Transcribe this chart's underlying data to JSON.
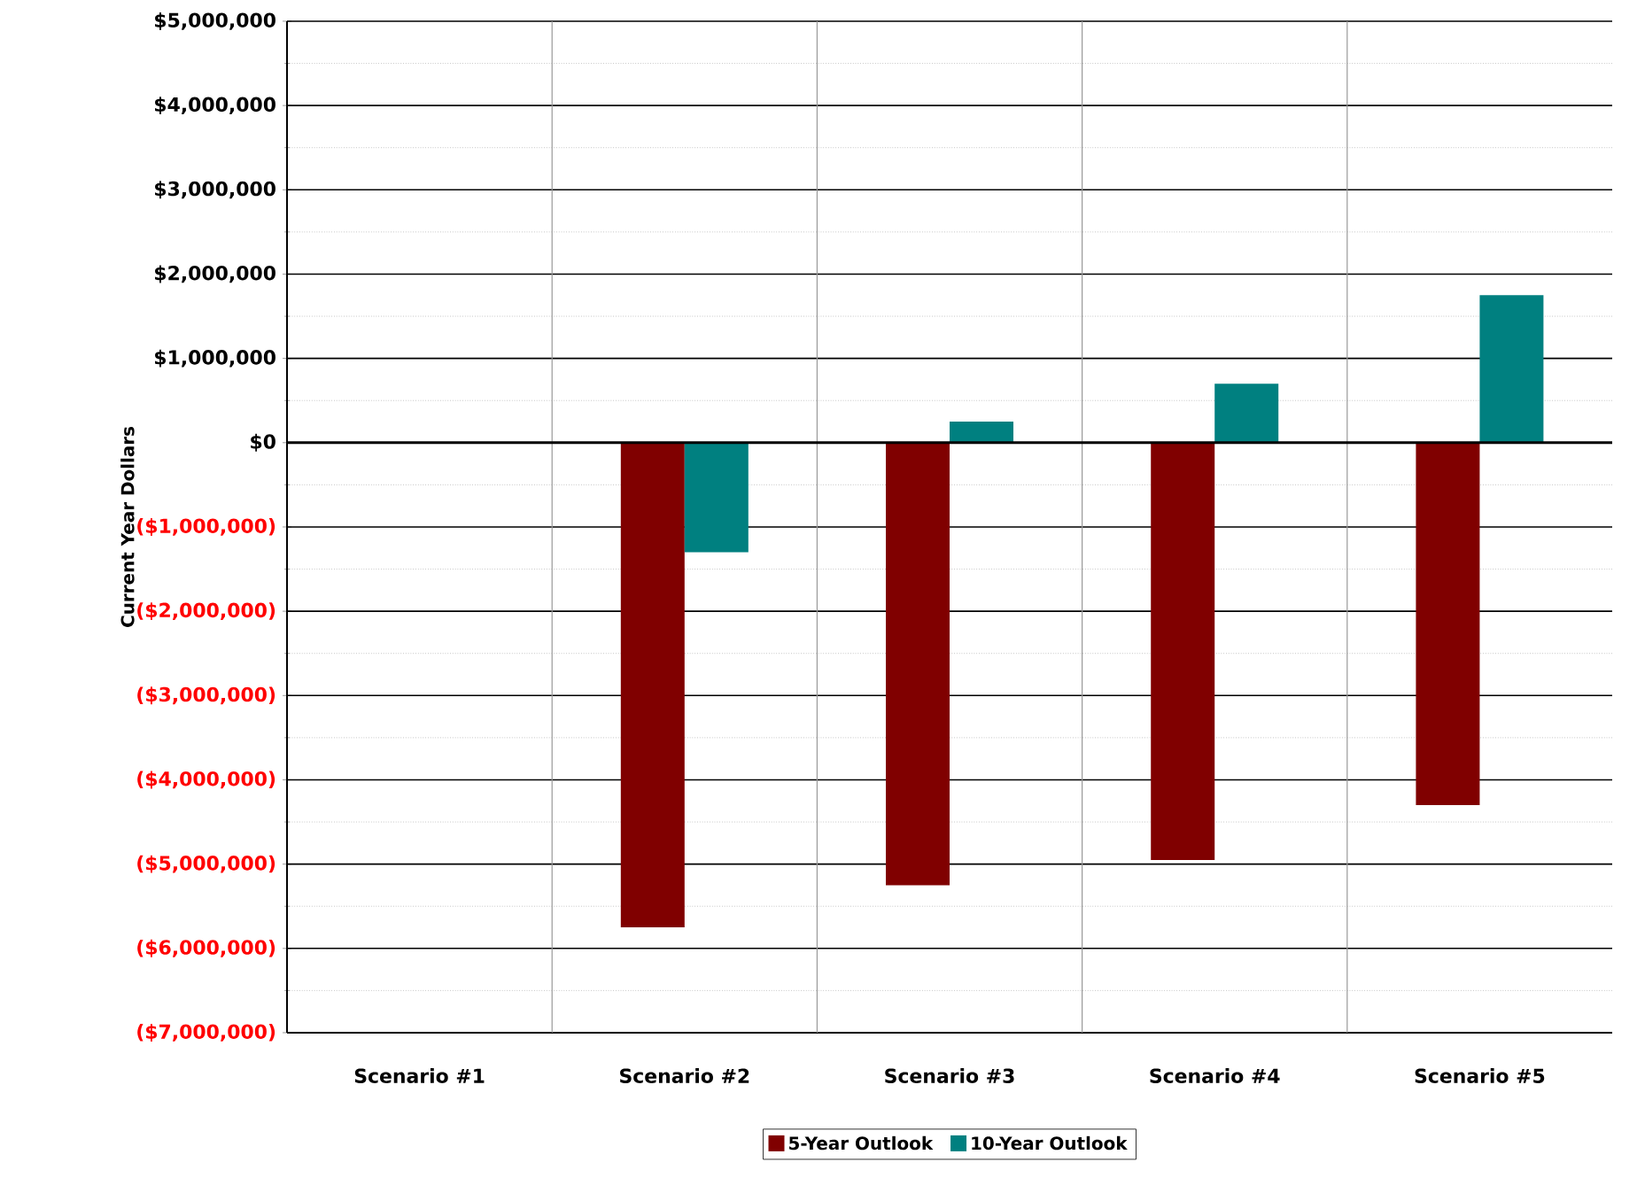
{
  "chart_data": {
    "type": "bar",
    "ylabel": "Current Year Dollars",
    "categories": [
      "Scenario #1",
      "Scenario #2",
      "Scenario #3",
      "Scenario #4",
      "Scenario #5"
    ],
    "series": [
      {
        "name": "5-Year Outlook",
        "color": "#800000",
        "values": [
          null,
          -5750000,
          -5250000,
          -4950000,
          -4300000
        ]
      },
      {
        "name": "10-Year Outlook",
        "color": "#008080",
        "values": [
          null,
          -1300000,
          250000,
          700000,
          1750000
        ]
      }
    ],
    "ylim": [
      -7000000,
      5000000
    ],
    "yticks": [
      {
        "value": -7000000,
        "label": "($7,000,000)"
      },
      {
        "value": -6000000,
        "label": "($6,000,000)"
      },
      {
        "value": -5000000,
        "label": "($5,000,000)"
      },
      {
        "value": -4000000,
        "label": "($4,000,000)"
      },
      {
        "value": -3000000,
        "label": "($3,000,000)"
      },
      {
        "value": -2000000,
        "label": "($2,000,000)"
      },
      {
        "value": -1000000,
        "label": "($1,000,000)"
      },
      {
        "value": 0,
        "label": "$0"
      },
      {
        "value": 1000000,
        "label": "$1,000,000"
      },
      {
        "value": 2000000,
        "label": "$2,000,000"
      },
      {
        "value": 3000000,
        "label": "$3,000,000"
      },
      {
        "value": 4000000,
        "label": "$4,000,000"
      },
      {
        "value": 5000000,
        "label": "$5,000,000"
      }
    ],
    "grid": true,
    "legend": "bottom"
  }
}
